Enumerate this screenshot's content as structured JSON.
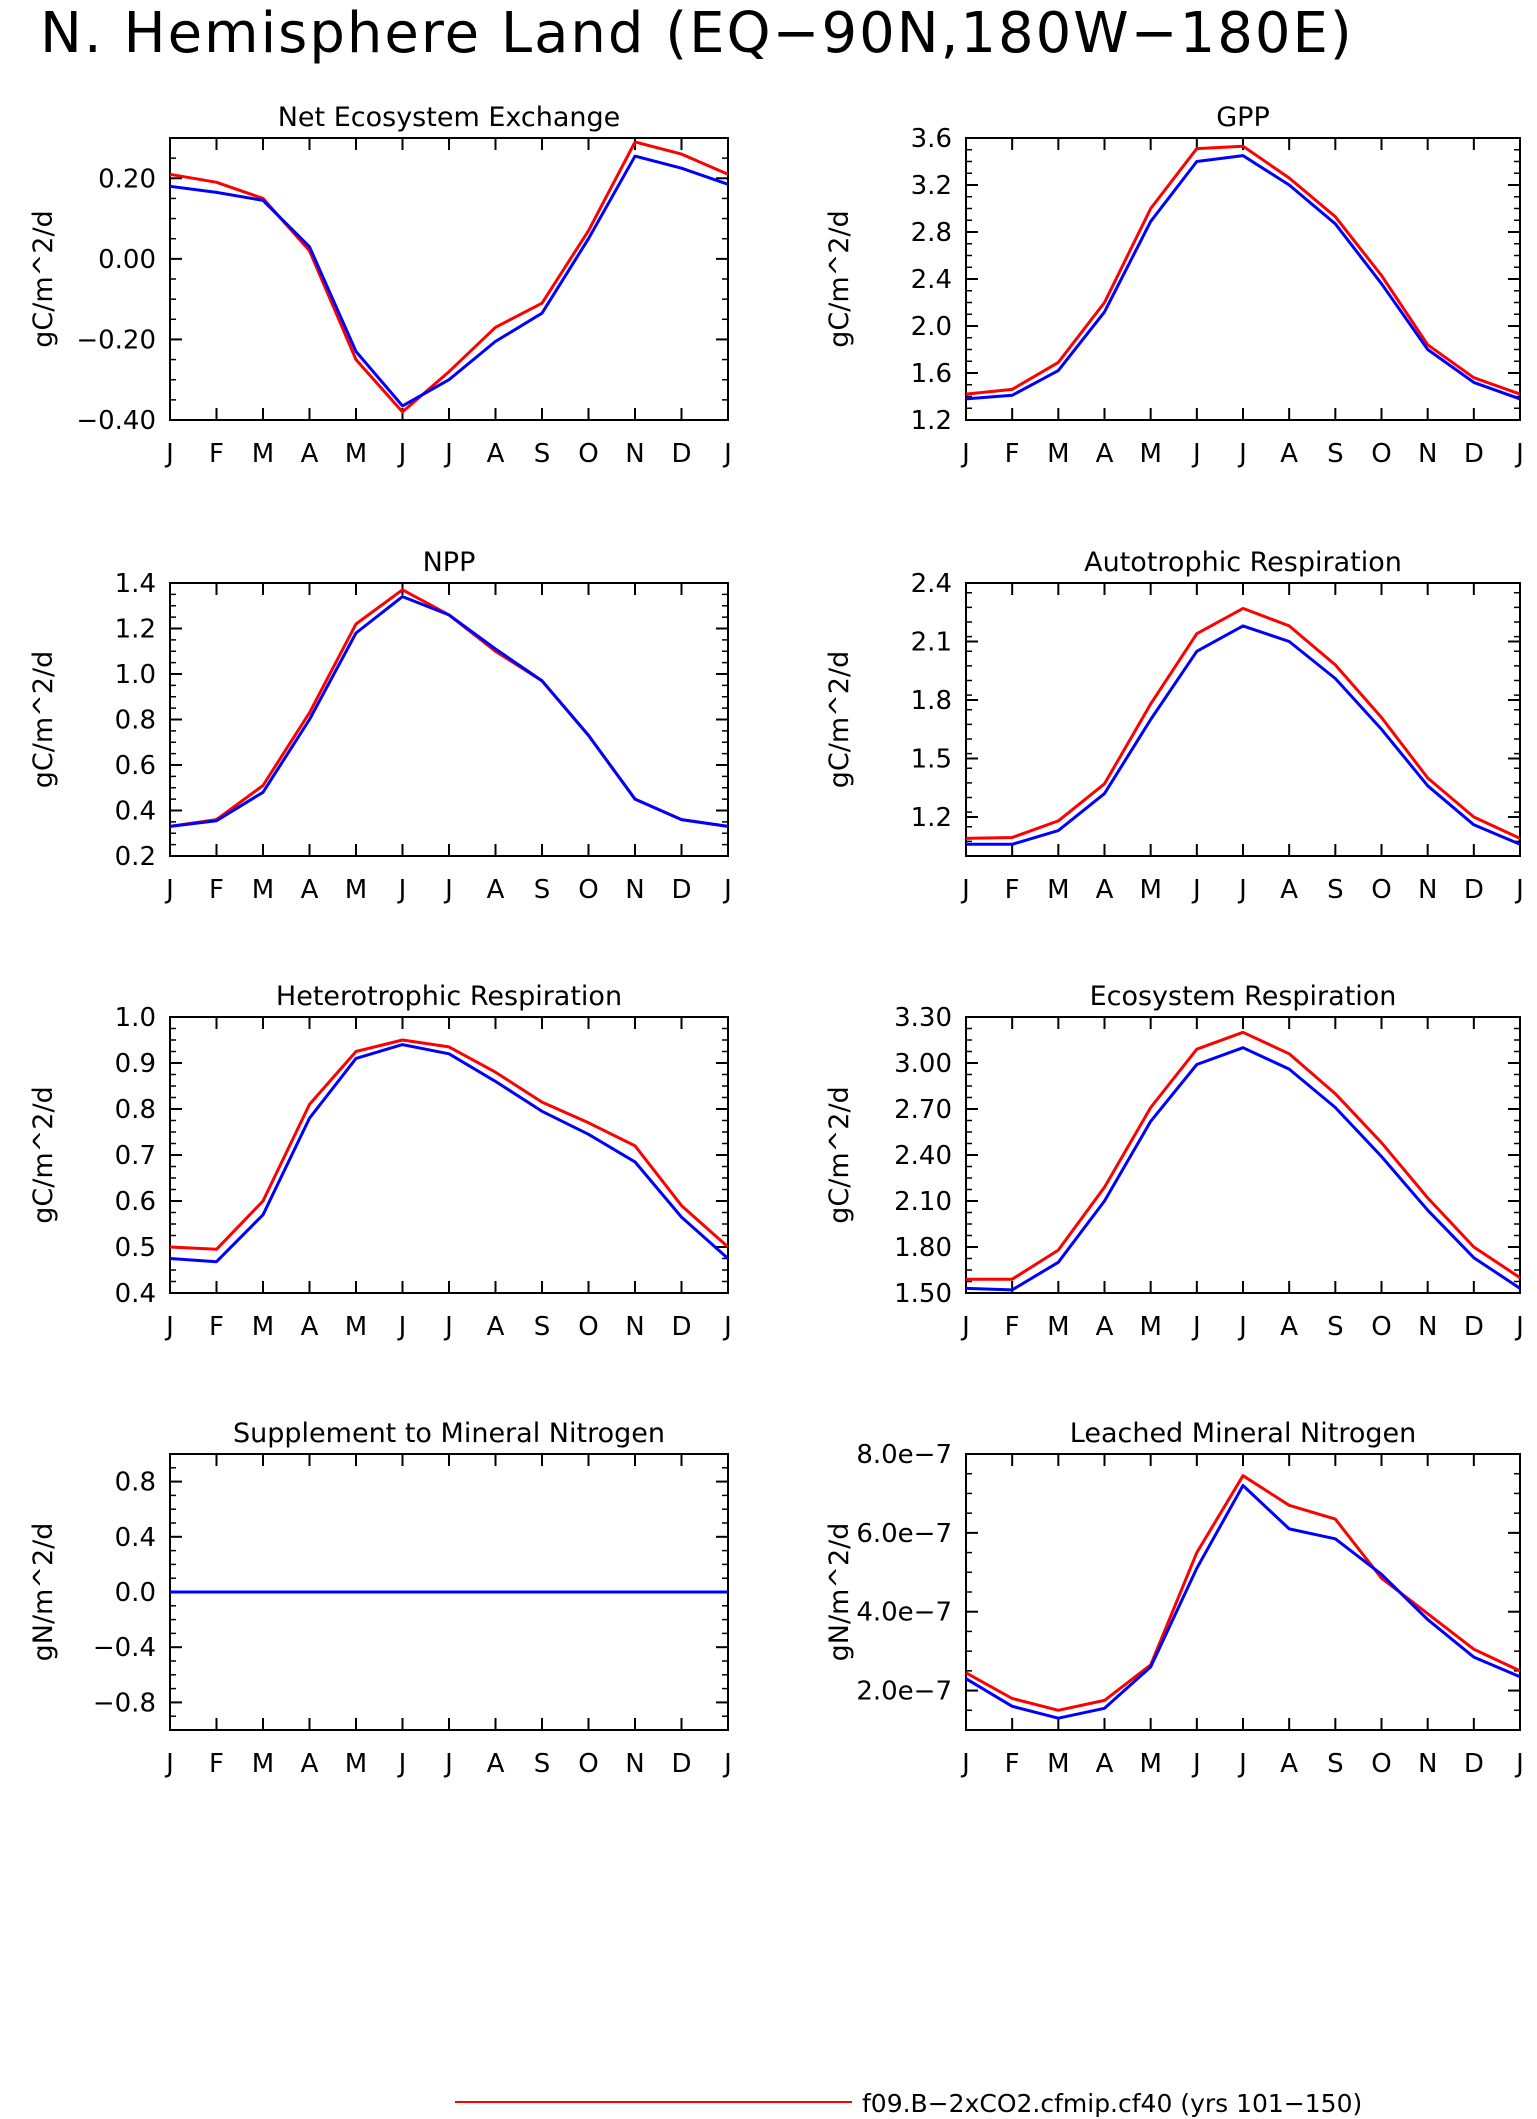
{
  "page_title": "N. Hemisphere Land (EQ−90N,180W−180E)",
  "month_labels": [
    "J",
    "F",
    "M",
    "A",
    "M",
    "J",
    "J",
    "A",
    "S",
    "O",
    "N",
    "D",
    "J"
  ],
  "colors": {
    "series1": "#ff0000",
    "series2": "#0000ff"
  },
  "legend": [
    {
      "label": "f09.B−2xCO2.cfmip.cf40 (yrs 101−150)",
      "color": "#ff0000"
    },
    {
      "label": "",
      "color": "#0000ff"
    }
  ],
  "chart_data": [
    {
      "type": "line",
      "title": "Net Ecosystem Exchange",
      "ylabel": "gC/m^2/d",
      "ylim": [
        -0.4,
        0.3
      ],
      "yticks": [
        "−0.40",
        "−0.20",
        "0.00",
        "0.20"
      ],
      "ytick_values": [
        -0.4,
        -0.2,
        0.0,
        0.2
      ],
      "x": [
        "J",
        "F",
        "M",
        "A",
        "M",
        "J",
        "J",
        "A",
        "S",
        "O",
        "N",
        "D",
        "J"
      ],
      "series": [
        {
          "color": "#ff0000",
          "values": [
            0.21,
            0.19,
            0.15,
            0.02,
            -0.25,
            -0.38,
            -0.28,
            -0.17,
            -0.11,
            0.07,
            0.29,
            0.26,
            0.21
          ]
        },
        {
          "color": "#0000ff",
          "values": [
            0.18,
            0.165,
            0.145,
            0.03,
            -0.23,
            -0.365,
            -0.3,
            -0.205,
            -0.135,
            0.05,
            0.255,
            0.225,
            0.185
          ]
        }
      ]
    },
    {
      "type": "line",
      "title": "GPP",
      "ylabel": "gC/m^2/d",
      "ylim": [
        1.2,
        3.6
      ],
      "yticks": [
        "1.2",
        "1.6",
        "2.0",
        "2.4",
        "2.8",
        "3.2",
        "3.6"
      ],
      "ytick_values": [
        1.2,
        1.6,
        2.0,
        2.4,
        2.8,
        3.2,
        3.6
      ],
      "x": [
        "J",
        "F",
        "M",
        "A",
        "M",
        "J",
        "J",
        "A",
        "S",
        "O",
        "N",
        "D",
        "J"
      ],
      "series": [
        {
          "color": "#ff0000",
          "values": [
            1.42,
            1.46,
            1.69,
            2.2,
            3.0,
            3.51,
            3.53,
            3.26,
            2.93,
            2.43,
            1.84,
            1.56,
            1.42
          ]
        },
        {
          "color": "#0000ff",
          "values": [
            1.38,
            1.41,
            1.62,
            2.12,
            2.89,
            3.4,
            3.45,
            3.2,
            2.87,
            2.36,
            1.8,
            1.52,
            1.38
          ]
        }
      ]
    },
    {
      "type": "line",
      "title": "NPP",
      "ylabel": "gC/m^2/d",
      "ylim": [
        0.2,
        1.4
      ],
      "yticks": [
        "0.2",
        "0.4",
        "0.6",
        "0.8",
        "1.0",
        "1.2",
        "1.4"
      ],
      "ytick_values": [
        0.2,
        0.4,
        0.6,
        0.8,
        1.0,
        1.2,
        1.4
      ],
      "x": [
        "J",
        "F",
        "M",
        "A",
        "M",
        "J",
        "J",
        "A",
        "S",
        "O",
        "N",
        "D",
        "J"
      ],
      "series": [
        {
          "color": "#ff0000",
          "values": [
            0.33,
            0.36,
            0.51,
            0.83,
            1.22,
            1.37,
            1.26,
            1.1,
            0.97,
            0.73,
            0.45,
            0.36,
            0.33
          ]
        },
        {
          "color": "#0000ff",
          "values": [
            0.33,
            0.355,
            0.48,
            0.8,
            1.18,
            1.34,
            1.26,
            1.11,
            0.97,
            0.73,
            0.45,
            0.36,
            0.33
          ]
        }
      ]
    },
    {
      "type": "line",
      "title": "Autotrophic Respiration",
      "ylabel": "gC/m^2/d",
      "ylim": [
        1.0,
        2.4
      ],
      "yticks": [
        "1.2",
        "1.5",
        "1.8",
        "2.1",
        "2.4"
      ],
      "ytick_values": [
        1.2,
        1.5,
        1.8,
        2.1,
        2.4
      ],
      "x": [
        "J",
        "F",
        "M",
        "A",
        "M",
        "J",
        "J",
        "A",
        "S",
        "O",
        "N",
        "D",
        "J"
      ],
      "series": [
        {
          "color": "#ff0000",
          "values": [
            1.09,
            1.095,
            1.18,
            1.37,
            1.78,
            2.14,
            2.27,
            2.18,
            1.98,
            1.71,
            1.4,
            1.2,
            1.09
          ]
        },
        {
          "color": "#0000ff",
          "values": [
            1.06,
            1.06,
            1.13,
            1.32,
            1.7,
            2.05,
            2.18,
            2.1,
            1.91,
            1.65,
            1.36,
            1.16,
            1.06
          ]
        }
      ]
    },
    {
      "type": "line",
      "title": "Heterotrophic Respiration",
      "ylabel": "gC/m^2/d",
      "ylim": [
        0.4,
        1.0
      ],
      "yticks": [
        "0.4",
        "0.5",
        "0.6",
        "0.7",
        "0.8",
        "0.9",
        "1.0"
      ],
      "ytick_values": [
        0.4,
        0.5,
        0.6,
        0.7,
        0.8,
        0.9,
        1.0
      ],
      "x": [
        "J",
        "F",
        "M",
        "A",
        "M",
        "J",
        "J",
        "A",
        "S",
        "O",
        "N",
        "D",
        "J"
      ],
      "series": [
        {
          "color": "#ff0000",
          "values": [
            0.5,
            0.495,
            0.6,
            0.81,
            0.925,
            0.95,
            0.935,
            0.88,
            0.815,
            0.77,
            0.72,
            0.59,
            0.5
          ]
        },
        {
          "color": "#0000ff",
          "values": [
            0.475,
            0.468,
            0.57,
            0.78,
            0.91,
            0.94,
            0.92,
            0.86,
            0.795,
            0.745,
            0.685,
            0.565,
            0.475
          ]
        }
      ]
    },
    {
      "type": "line",
      "title": "Ecosystem Respiration",
      "ylabel": "gC/m^2/d",
      "ylim": [
        1.5,
        3.3
      ],
      "yticks": [
        "1.50",
        "1.80",
        "2.10",
        "2.40",
        "2.70",
        "3.00",
        "3.30"
      ],
      "ytick_values": [
        1.5,
        1.8,
        2.1,
        2.4,
        2.7,
        3.0,
        3.3
      ],
      "x": [
        "J",
        "F",
        "M",
        "A",
        "M",
        "J",
        "J",
        "A",
        "S",
        "O",
        "N",
        "D",
        "J"
      ],
      "series": [
        {
          "color": "#ff0000",
          "values": [
            1.59,
            1.59,
            1.78,
            2.19,
            2.71,
            3.09,
            3.2,
            3.06,
            2.8,
            2.48,
            2.12,
            1.8,
            1.6
          ]
        },
        {
          "color": "#0000ff",
          "values": [
            1.53,
            1.52,
            1.7,
            2.1,
            2.62,
            2.99,
            3.1,
            2.96,
            2.71,
            2.39,
            2.04,
            1.73,
            1.53
          ]
        }
      ]
    },
    {
      "type": "line",
      "title": "Supplement to Mineral Nitrogen",
      "ylabel": "gN/m^2/d",
      "ylim": [
        -1.0,
        1.0
      ],
      "yticks": [
        "−0.8",
        "−0.4",
        "0.0",
        "0.4",
        "0.8"
      ],
      "ytick_values": [
        -0.8,
        -0.4,
        0.0,
        0.4,
        0.8
      ],
      "x": [
        "J",
        "F",
        "M",
        "A",
        "M",
        "J",
        "J",
        "A",
        "S",
        "O",
        "N",
        "D",
        "J"
      ],
      "series": [
        {
          "color": "#ff0000",
          "values": [
            0,
            0,
            0,
            0,
            0,
            0,
            0,
            0,
            0,
            0,
            0,
            0,
            0
          ]
        },
        {
          "color": "#0000ff",
          "values": [
            0,
            0,
            0,
            0,
            0,
            0,
            0,
            0,
            0,
            0,
            0,
            0,
            0
          ]
        }
      ]
    },
    {
      "type": "line",
      "title": "Leached Mineral Nitrogen",
      "ylabel": "gN/m^2/d",
      "ylim": [
        1e-07,
        8e-07
      ],
      "yticks": [
        "2.0e−7",
        "4.0e−7",
        "6.0e−7",
        "8.0e−7"
      ],
      "ytick_values": [
        2e-07,
        4e-07,
        6e-07,
        8e-07
      ],
      "x": [
        "J",
        "F",
        "M",
        "A",
        "M",
        "J",
        "J",
        "A",
        "S",
        "O",
        "N",
        "D",
        "J"
      ],
      "series": [
        {
          "color": "#ff0000",
          "values": [
            2.45e-07,
            1.8e-07,
            1.5e-07,
            1.75e-07,
            2.65e-07,
            5.5e-07,
            7.45e-07,
            6.7e-07,
            6.35e-07,
            4.85e-07,
            3.95e-07,
            3.05e-07,
            2.5e-07
          ]
        },
        {
          "color": "#0000ff",
          "values": [
            2.3e-07,
            1.6e-07,
            1.3e-07,
            1.55e-07,
            2.6e-07,
            5.1e-07,
            7.2e-07,
            6.1e-07,
            5.85e-07,
            4.95e-07,
            3.8e-07,
            2.85e-07,
            2.35e-07
          ]
        }
      ]
    }
  ]
}
